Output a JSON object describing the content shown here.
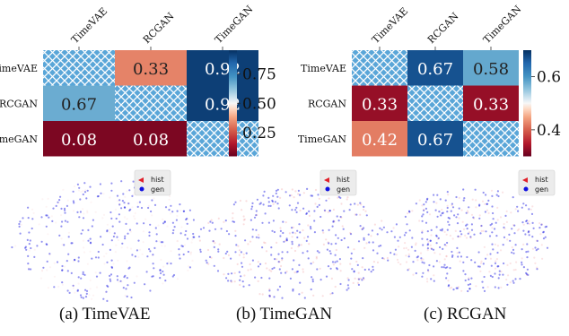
{
  "chart_data": [
    {
      "type": "heatmap",
      "rows": [
        "TimeVAE",
        "RCGAN",
        "TimeGAN"
      ],
      "columns": [
        "TimeVAE",
        "RCGAN",
        "TimeGAN"
      ],
      "values": [
        [
          null,
          0.33,
          0.92
        ],
        [
          0.67,
          null,
          0.92
        ],
        [
          0.08,
          0.08,
          null
        ]
      ],
      "cell_labels": [
        [
          "",
          "0.33",
          "0.92"
        ],
        [
          "0.67",
          "",
          "0.92"
        ],
        [
          "0.08",
          "0.08",
          ""
        ]
      ],
      "diagonal": "hatched",
      "colorbar": {
        "range": [
          0.05,
          0.95
        ],
        "ticks": [
          "0.75",
          "0.50",
          "0.25"
        ],
        "tick_values": [
          0.75,
          0.5,
          0.25
        ]
      },
      "colormap": "red-white-blue"
    },
    {
      "type": "heatmap",
      "rows": [
        "TimeVAE",
        "RCGAN",
        "TimeGAN"
      ],
      "columns": [
        "TimeVAE",
        "RCGAN",
        "TimeGAN"
      ],
      "values": [
        [
          null,
          0.67,
          0.58
        ],
        [
          0.33,
          null,
          0.33
        ],
        [
          0.42,
          0.67,
          null
        ]
      ],
      "cell_labels": [
        [
          "",
          "0.67",
          "0.58"
        ],
        [
          "0.33",
          "",
          "0.33"
        ],
        [
          "0.42",
          "0.67",
          ""
        ]
      ],
      "diagonal": "hatched",
      "colorbar": {
        "range": [
          0.3,
          0.7
        ],
        "ticks": [
          "0.6",
          "0.4"
        ],
        "tick_values": [
          0.6,
          0.4
        ]
      },
      "colormap": "red-white-blue"
    },
    {
      "type": "scatter",
      "description": "t-SNE embedding of historical vs generated samples",
      "legend": [
        "hist",
        "gen"
      ],
      "legend_placement": "top-right"
    },
    {
      "type": "scatter",
      "legend": [
        "hist",
        "gen"
      ],
      "legend_placement": "top-right"
    },
    {
      "type": "scatter",
      "legend": [
        "hist",
        "gen"
      ],
      "legend_placement": "top-right"
    }
  ],
  "colors": {
    "hist": "#e0202a",
    "gen": "#1010e0",
    "hatch_fill": "#5aa6d8",
    "dark_red": "#67001f",
    "dark_blue": "#053061"
  },
  "captions": {
    "a": "(a) TimeVAE",
    "b": "(b) TimeGAN",
    "c": "(c) RCGAN"
  }
}
